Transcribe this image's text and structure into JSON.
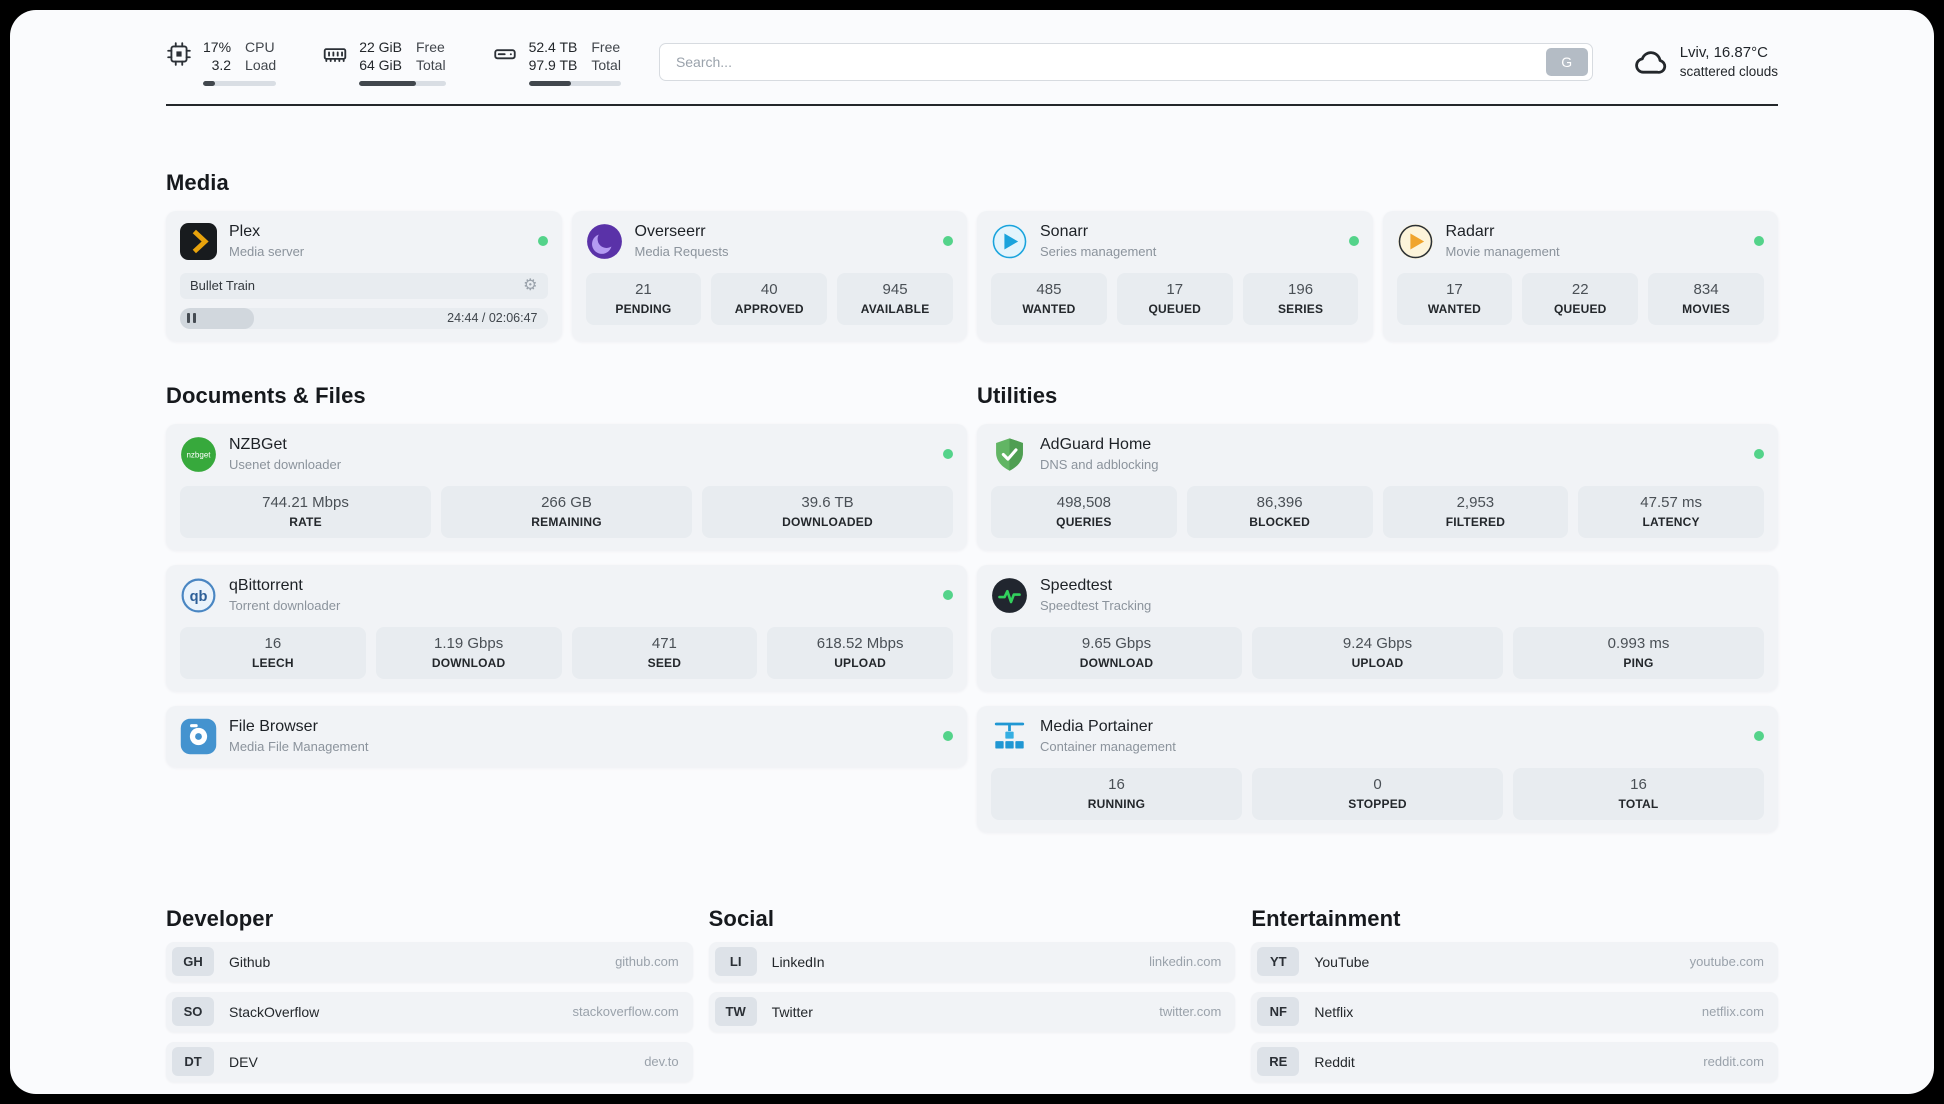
{
  "header": {
    "cpu": {
      "value_top": "17%",
      "value_bottom": "3.2",
      "label_top": "CPU",
      "label_bottom": "Load",
      "bar_percent": 17
    },
    "ram": {
      "value_top": "22 GiB",
      "value_bottom": "64 GiB",
      "label_top": "Free",
      "label_bottom": "Total",
      "bar_percent": 66
    },
    "disk": {
      "value_top": "52.4 TB",
      "value_bottom": "97.9 TB",
      "label_top": "Free",
      "label_bottom": "Total",
      "bar_percent": 46
    },
    "search": {
      "placeholder": "Search...",
      "button_label": "G"
    },
    "weather": {
      "location": "Lviv, 16.87°C",
      "condition": "scattered clouds"
    }
  },
  "media": {
    "title": "Media",
    "plex": {
      "name": "Plex",
      "desc": "Media server",
      "online": true,
      "now_playing": "Bullet Train",
      "gear_glyph": "⚙",
      "time": "24:44 / 02:06:47",
      "progress_percent": 20
    },
    "overseerr": {
      "name": "Overseerr",
      "desc": "Media Requests",
      "online": true,
      "stats": [
        {
          "value": "21",
          "label": "PENDING"
        },
        {
          "value": "40",
          "label": "APPROVED"
        },
        {
          "value": "945",
          "label": "AVAILABLE"
        }
      ]
    },
    "sonarr": {
      "name": "Sonarr",
      "desc": "Series management",
      "online": true,
      "stats": [
        {
          "value": "485",
          "label": "WANTED"
        },
        {
          "value": "17",
          "label": "QUEUED"
        },
        {
          "value": "196",
          "label": "SERIES"
        }
      ]
    },
    "radarr": {
      "name": "Radarr",
      "desc": "Movie management",
      "online": true,
      "stats": [
        {
          "value": "17",
          "label": "WANTED"
        },
        {
          "value": "22",
          "label": "QUEUED"
        },
        {
          "value": "834",
          "label": "MOVIES"
        }
      ]
    }
  },
  "documents": {
    "title": "Documents & Files",
    "nzbget": {
      "name": "NZBGet",
      "desc": "Usenet downloader",
      "online": true,
      "stats": [
        {
          "value": "744.21 Mbps",
          "label": "RATE"
        },
        {
          "value": "266 GB",
          "label": "REMAINING"
        },
        {
          "value": "39.6 TB",
          "label": "DOWNLOADED"
        }
      ]
    },
    "qbittorrent": {
      "name": "qBittorrent",
      "desc": "Torrent downloader",
      "online": true,
      "stats": [
        {
          "value": "16",
          "label": "LEECH"
        },
        {
          "value": "1.19 Gbps",
          "label": "DOWNLOAD"
        },
        {
          "value": "471",
          "label": "SEED"
        },
        {
          "value": "618.52 Mbps",
          "label": "UPLOAD"
        }
      ]
    },
    "filebrowser": {
      "name": "File Browser",
      "desc": "Media File Management",
      "online": true
    }
  },
  "utilities": {
    "title": "Utilities",
    "adguard": {
      "name": "AdGuard Home",
      "desc": "DNS and adblocking",
      "online": true,
      "stats": [
        {
          "value": "498,508",
          "label": "QUERIES"
        },
        {
          "value": "86,396",
          "label": "BLOCKED"
        },
        {
          "value": "2,953",
          "label": "FILTERED"
        },
        {
          "value": "47.57 ms",
          "label": "LATENCY"
        }
      ]
    },
    "speedtest": {
      "name": "Speedtest",
      "desc": "Speedtest Tracking",
      "online": false,
      "stats": [
        {
          "value": "9.65 Gbps",
          "label": "DOWNLOAD"
        },
        {
          "value": "9.24 Gbps",
          "label": "UPLOAD"
        },
        {
          "value": "0.993 ms",
          "label": "PING"
        }
      ]
    },
    "portainer": {
      "name": "Media Portainer",
      "desc": "Container management",
      "online": true,
      "stats": [
        {
          "value": "16",
          "label": "RUNNING"
        },
        {
          "value": "0",
          "label": "STOPPED"
        },
        {
          "value": "16",
          "label": "TOTAL"
        }
      ]
    }
  },
  "bookmarks": {
    "developer": {
      "title": "Developer",
      "items": [
        {
          "abbr": "GH",
          "name": "Github",
          "url": "github.com"
        },
        {
          "abbr": "SO",
          "name": "StackOverflow",
          "url": "stackoverflow.com"
        },
        {
          "abbr": "DT",
          "name": "DEV",
          "url": "dev.to"
        }
      ]
    },
    "social": {
      "title": "Social",
      "items": [
        {
          "abbr": "LI",
          "name": "LinkedIn",
          "url": "linkedin.com"
        },
        {
          "abbr": "TW",
          "name": "Twitter",
          "url": "twitter.com"
        }
      ]
    },
    "entertainment": {
      "title": "Entertainment",
      "items": [
        {
          "abbr": "YT",
          "name": "YouTube",
          "url": "youtube.com"
        },
        {
          "abbr": "NF",
          "name": "Netflix",
          "url": "netflix.com"
        },
        {
          "abbr": "RE",
          "name": "Reddit",
          "url": "reddit.com"
        }
      ]
    }
  },
  "colors": {
    "accent_green": "#54d38a",
    "plex_orange": "#e8a30c",
    "dark_text": "#23272b"
  }
}
